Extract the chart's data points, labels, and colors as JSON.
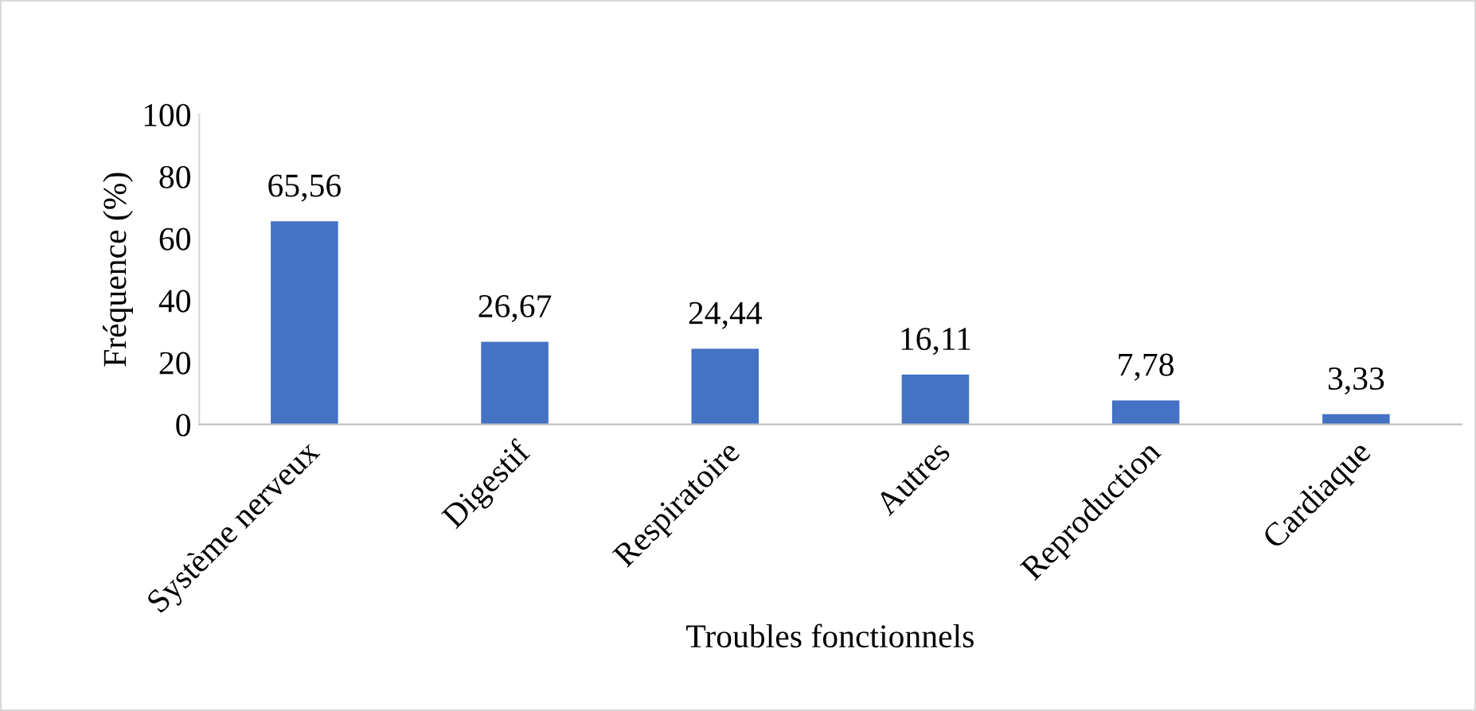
{
  "chart_data": {
    "type": "bar",
    "xlabel": "Troubles fonctionnels",
    "ylabel": "Fréquence (%)",
    "categories": [
      "Système nerveux",
      "Digestif",
      "Respiratoire",
      "Autres",
      "Reproduction",
      "Cardiaque"
    ],
    "values": [
      65.56,
      26.67,
      24.44,
      16.11,
      7.78,
      3.33
    ],
    "value_labels": [
      "65,56",
      "26,67",
      "24,44",
      "16,11",
      "7,78",
      "3,33"
    ],
    "color": "#4472c4",
    "ylim": [
      0,
      100
    ],
    "yticks": [
      0,
      20,
      40,
      60,
      80,
      100
    ],
    "grid": false
  }
}
